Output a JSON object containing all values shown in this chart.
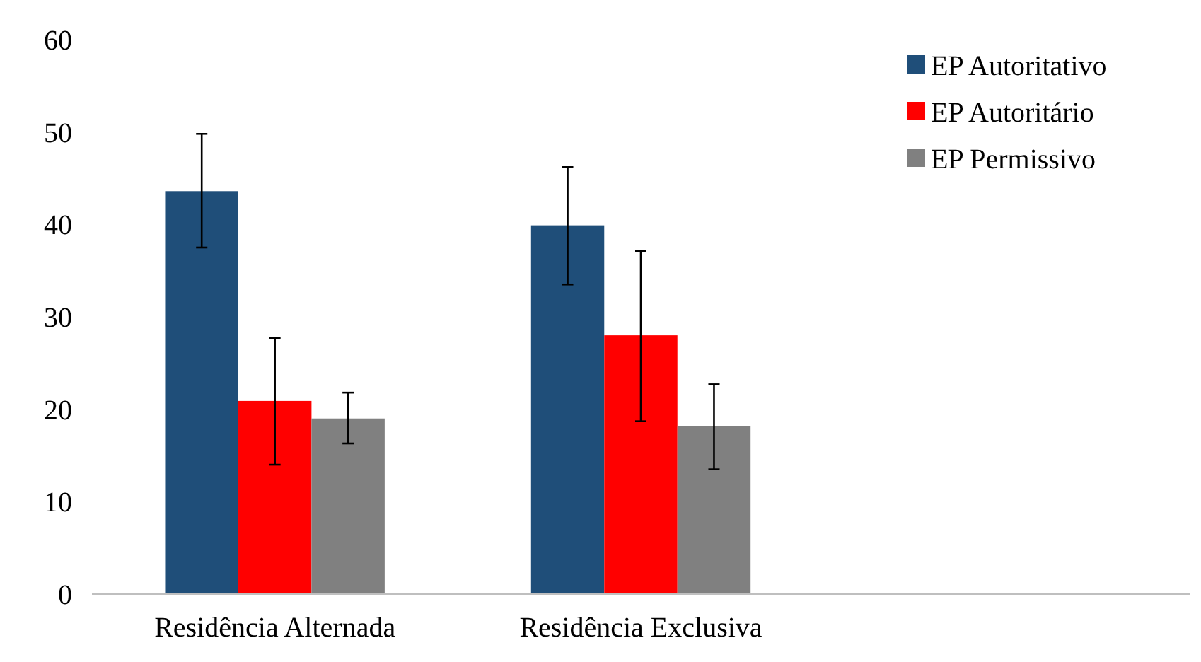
{
  "chart_data": {
    "type": "bar",
    "categories": [
      "Residência Alternada",
      "Residência Exclusiva",
      null
    ],
    "series": [
      {
        "name": "EP Autoritativo",
        "color": "#1f4e79",
        "values": [
          43.6,
          39.9,
          null
        ],
        "errors": [
          [
            37.5,
            49.8
          ],
          [
            33.5,
            46.2
          ],
          null
        ]
      },
      {
        "name": "EP Autoritário",
        "color": "#ff0000",
        "values": [
          20.9,
          28.0,
          null
        ],
        "errors": [
          [
            14.0,
            27.7
          ],
          [
            18.7,
            37.1
          ],
          null
        ]
      },
      {
        "name": "EP Permissivo",
        "color": "#808080",
        "values": [
          19.0,
          18.2,
          null
        ],
        "errors": [
          [
            16.3,
            21.8
          ],
          [
            13.5,
            22.7
          ],
          null
        ]
      }
    ],
    "ylim": [
      0,
      60
    ],
    "yticks": [
      0,
      10,
      20,
      30,
      40,
      50,
      60
    ],
    "grid": false,
    "legend": "top right"
  }
}
